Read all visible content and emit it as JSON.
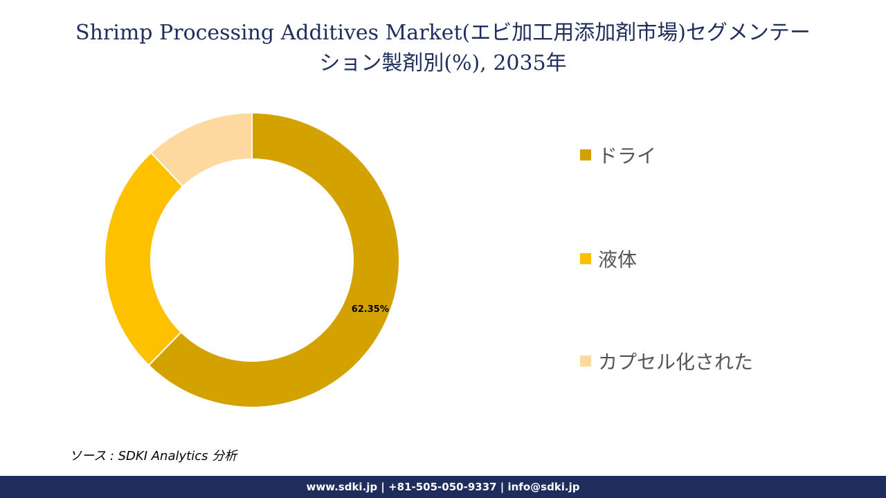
{
  "title": {
    "line1": "Shrimp Processing Additives Market(エビ加工用添加剤市場)セグメンテー",
    "line2": "ション製剤別(%), 2035年"
  },
  "chart_data": {
    "type": "pie",
    "style": "donut",
    "categories": [
      "ドライ",
      "液体",
      "カプセル化された"
    ],
    "values": [
      62.35,
      25.65,
      12.0
    ],
    "colors": [
      "#d4a200",
      "#fdc100",
      "#fdd9a0"
    ],
    "data_labels": [
      "62.35%",
      "",
      ""
    ],
    "legend_position": "right"
  },
  "source": "ソース : SDKI Analytics 分析",
  "footer": "www.sdki.jp | +81-505-050-9337 | info@sdki.jp"
}
